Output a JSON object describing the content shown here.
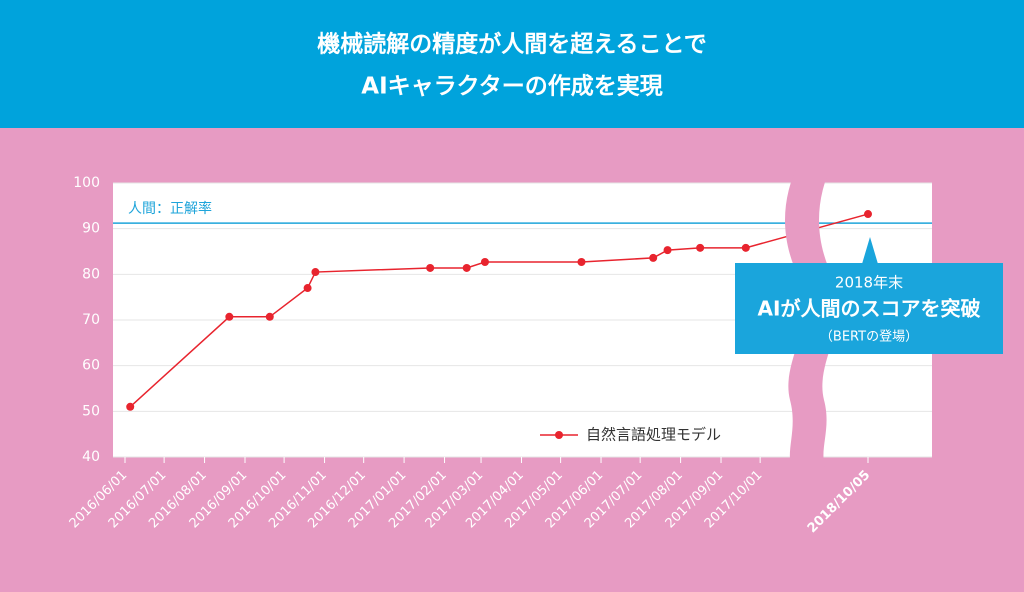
{
  "header": {
    "title_lines": [
      "機械読解の精度が人間を超えることで",
      "AIキャラクターの作成を実現"
    ]
  },
  "chart_data": {
    "type": "line",
    "x": [
      "2016/06/05",
      "2016/08/20",
      "2016/09/20",
      "2016/10/19",
      "2016/10/25",
      "2017/01/21",
      "2017/02/18",
      "2017/03/04",
      "2017/05/17",
      "2017/07/11",
      "2017/07/22",
      "2017/08/16",
      "2017/09/20",
      "2018/10/05"
    ],
    "series": [
      {
        "name": "自然言語処理モデル",
        "color": "#e8242e",
        "values": [
          51.0,
          70.7,
          70.7,
          77.0,
          80.5,
          81.4,
          81.4,
          82.7,
          82.7,
          83.6,
          85.3,
          85.8,
          85.8,
          93.2
        ]
      }
    ],
    "ylim": [
      40,
      100
    ],
    "yticks": [
      40,
      50,
      60,
      70,
      80,
      90,
      100
    ],
    "xticks": [
      "2016/06/01",
      "2016/07/01",
      "2016/08/01",
      "2016/09/01",
      "2016/10/01",
      "2016/11/01",
      "2016/12/01",
      "2017/01/01",
      "2017/02/01",
      "2017/03/01",
      "2017/04/01",
      "2017/05/01",
      "2017/06/01",
      "2017/07/01",
      "2017/08/01",
      "2017/09/01",
      "2017/10/01",
      "2018/10/05"
    ],
    "grid": true,
    "axis_break": true,
    "reference_line": {
      "value": 91.2,
      "label": "人間：正解率",
      "color": "#1ea4da"
    },
    "annotation": {
      "lines": [
        "2018年末",
        "AIが人間のスコアを突破",
        "（BERTの登場）"
      ],
      "color": "#1aa5dc"
    }
  }
}
